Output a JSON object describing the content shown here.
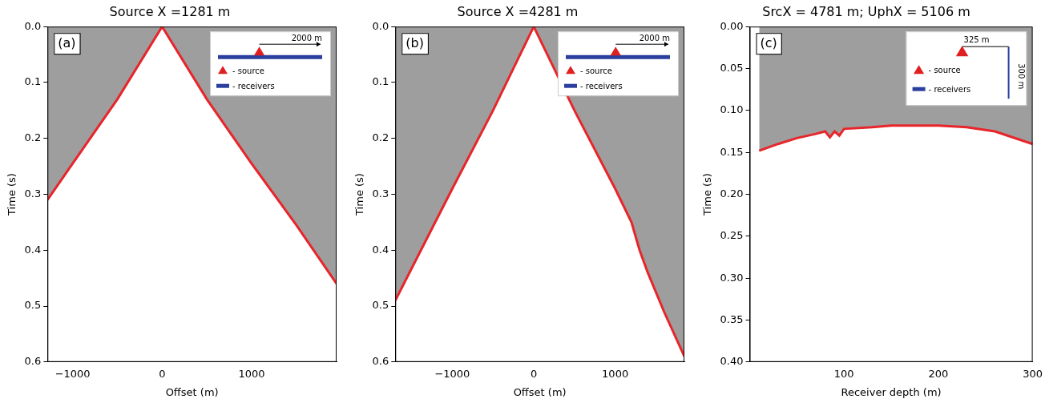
{
  "chart_data": [
    {
      "type": "line",
      "title": "Source X =1281 m",
      "panel_label": "(a)",
      "x_label": "Offset (m)",
      "y_label": "Time (s)",
      "x": [
        -1281,
        -1000,
        -500,
        0,
        500,
        1000,
        1500,
        1950
      ],
      "values": [
        0.31,
        0.245,
        0.13,
        0.0,
        0.13,
        0.245,
        0.355,
        0.46
      ],
      "color": "#e8252a",
      "xlim": [
        -1281,
        1950
      ],
      "ylim": [
        0,
        0.6
      ],
      "xticks": [
        {
          "value": -1000,
          "label": "−1000"
        },
        0,
        1000
      ],
      "yticks": [
        {
          "value": 0,
          "label": "0.0"
        },
        0.1,
        0.2,
        0.3,
        0.4,
        0.5,
        0.6
      ],
      "grid": false,
      "inset": {
        "scale_label": "2000 m",
        "source_label": "- source",
        "receivers_label": "- receivers"
      }
    },
    {
      "type": "line",
      "title": "Source X =4281 m",
      "panel_label": "(b)",
      "x_label": "Offset (m)",
      "y_label": "Time (s)",
      "x": [
        -1700,
        -1000,
        -500,
        0,
        500,
        1000,
        1200,
        1300,
        1400,
        1600,
        1850
      ],
      "values": [
        0.49,
        0.29,
        0.15,
        0.0,
        0.15,
        0.29,
        0.35,
        0.4,
        0.44,
        0.51,
        0.59
      ],
      "color": "#e8252a",
      "xlim": [
        -1700,
        1850
      ],
      "ylim": [
        0,
        0.6
      ],
      "xticks": [
        {
          "value": -1000,
          "label": "−1000"
        },
        0,
        1000
      ],
      "yticks": [
        {
          "value": 0,
          "label": "0.0"
        },
        0.1,
        0.2,
        0.3,
        0.4,
        0.5,
        0.6
      ],
      "grid": false,
      "inset": {
        "scale_label": "2000 m",
        "source_label": "- source",
        "receivers_label": "- receivers"
      }
    },
    {
      "type": "line",
      "title": "SrcX = 4781 m; UphX = 5106 m",
      "panel_label": "(c)",
      "x_label": "Receiver depth (m)",
      "y_label": "Time (s)",
      "x": [
        10,
        30,
        50,
        70,
        80,
        85,
        90,
        95,
        100,
        130,
        150,
        200,
        230,
        260,
        300
      ],
      "values": [
        0.148,
        0.14,
        0.133,
        0.128,
        0.125,
        0.132,
        0.125,
        0.13,
        0.122,
        0.12,
        0.118,
        0.118,
        0.12,
        0.125,
        0.14
      ],
      "color": "#e8252a",
      "xlim": [
        0,
        300
      ],
      "ylim": [
        0,
        0.4
      ],
      "xticks": [
        100,
        200,
        300
      ],
      "yticks": [
        {
          "value": 0,
          "label": "0.00"
        },
        0.05,
        {
          "value": 0.1,
          "label": "0.10"
        },
        0.15,
        {
          "value": 0.2,
          "label": "0.20"
        },
        0.25,
        {
          "value": 0.3,
          "label": "0.30"
        },
        0.35,
        {
          "value": 0.4,
          "label": "0.40"
        }
      ],
      "grid": false,
      "inset": {
        "offset_label": "325 m",
        "depth_label": "300 m",
        "source_label": "- source",
        "receivers_label": "- receivers"
      }
    }
  ]
}
